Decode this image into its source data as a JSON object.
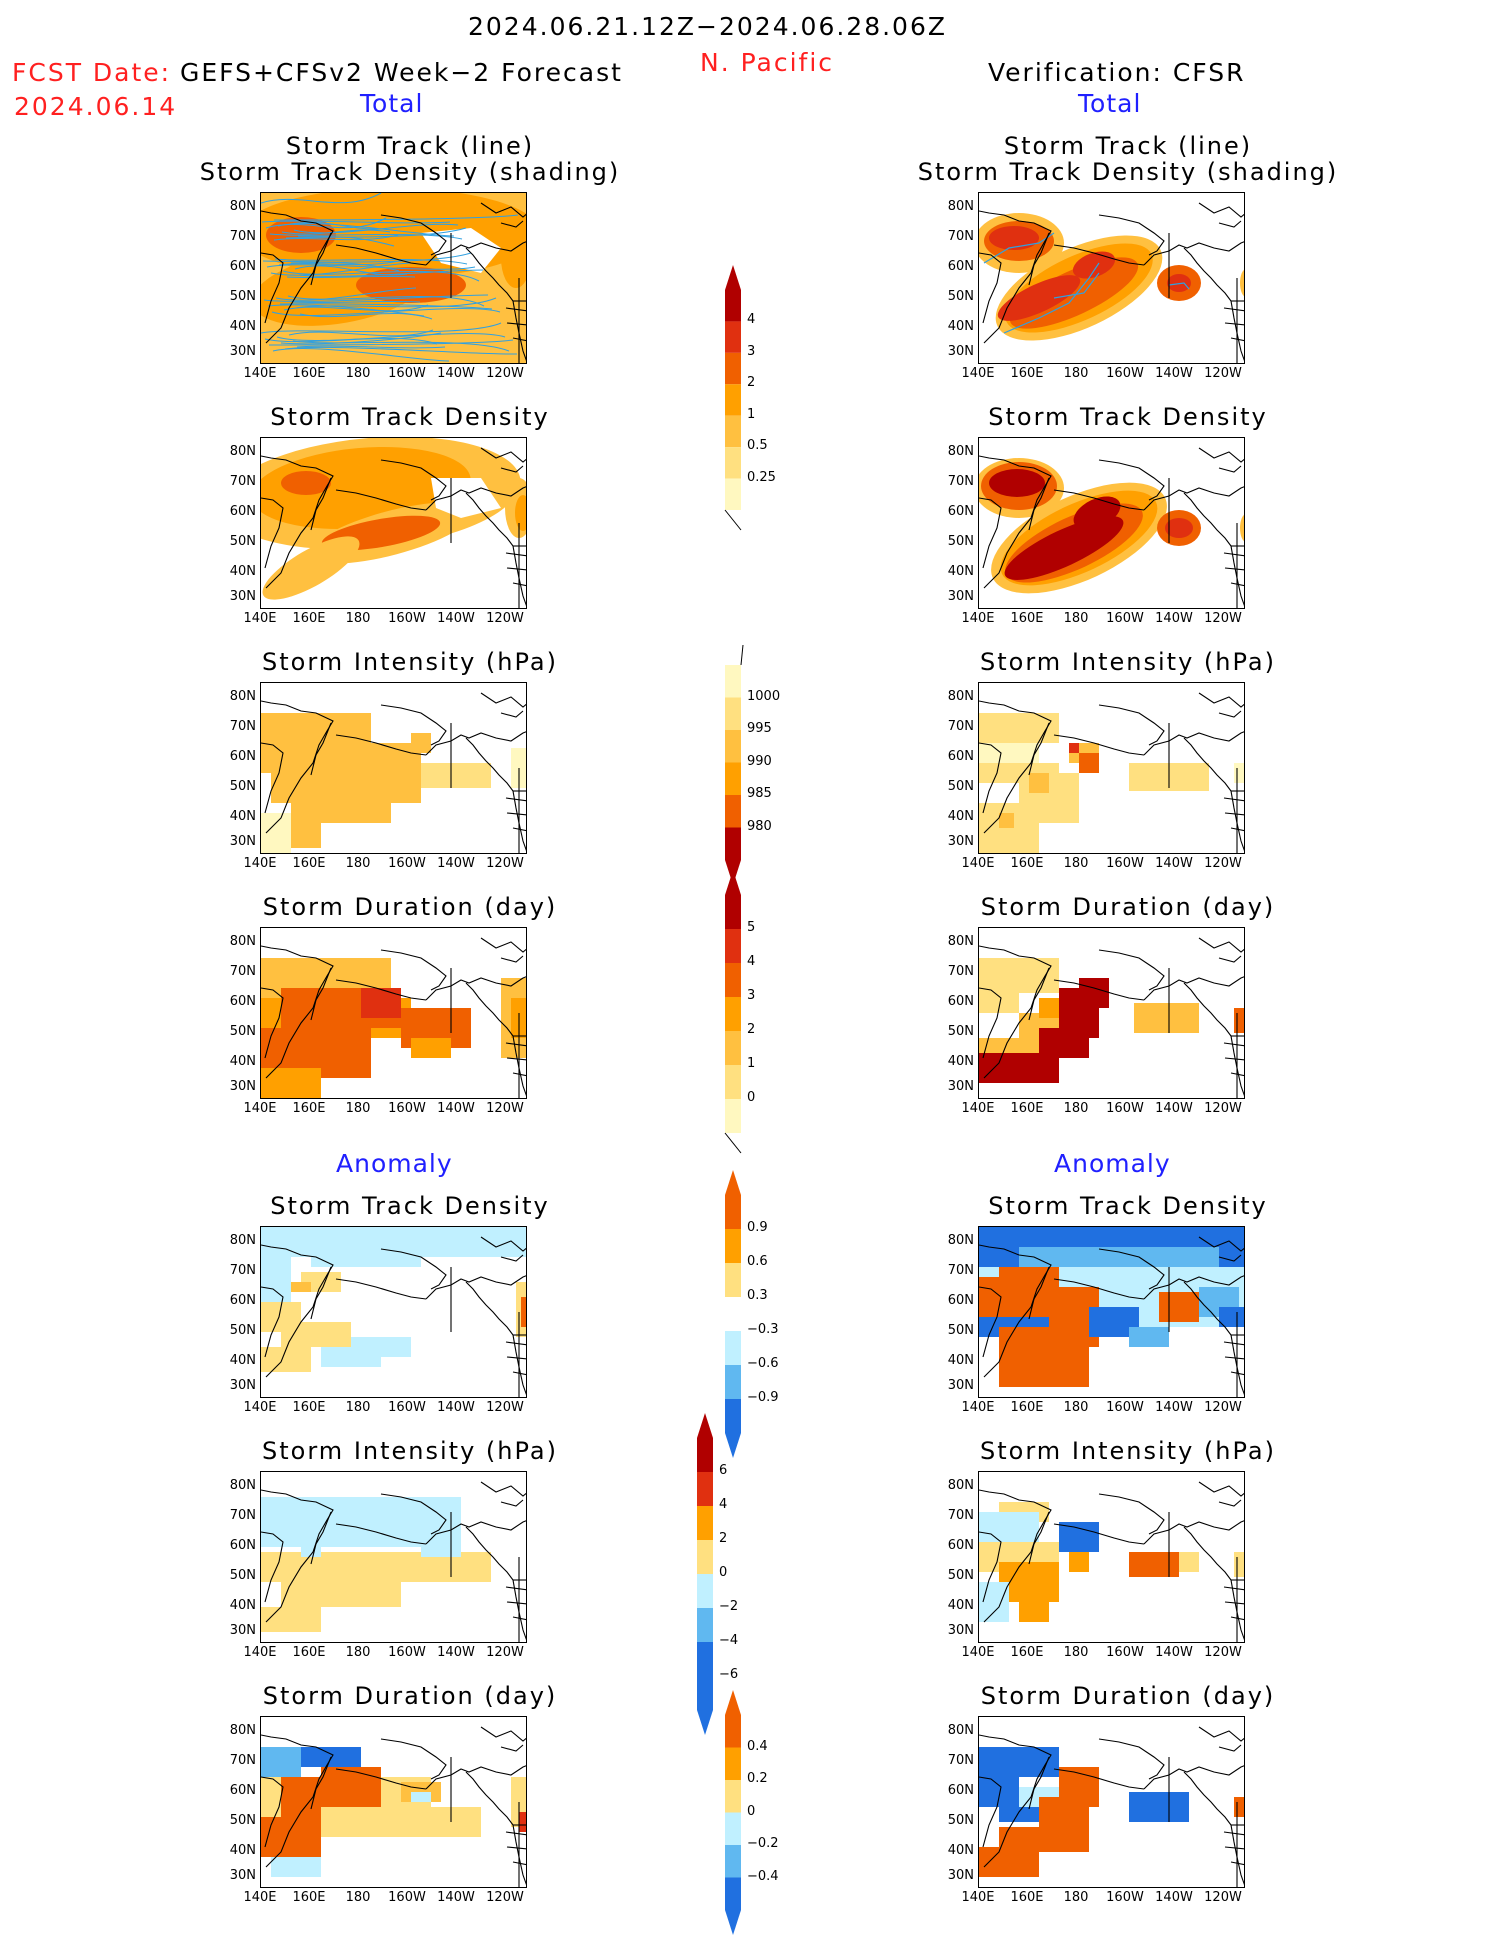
{
  "header": {
    "period": "2024.06.21.12Z−2024.06.28.06Z",
    "region": "N. Pacific",
    "fcst_label": "FCST Date:",
    "fcst_model": "GEFS+CFSv2 Week−2 Forecast",
    "fcst_date": "2024.06.14",
    "verification": "Verification: CFSR"
  },
  "section_labels": {
    "total": "Total",
    "anomaly": "Anomaly"
  },
  "panel_titles": {
    "track_line": "Storm Track (line)",
    "track_shading": "Storm Track Density (shading)",
    "density": "Storm Track Density",
    "intensity": "Storm Intensity (hPa)",
    "duration": "Storm Duration (day)"
  },
  "axes": {
    "lat_labels": [
      "80N",
      "70N",
      "60N",
      "50N",
      "40N",
      "30N"
    ],
    "lon_labels": [
      "140E",
      "160E",
      "180",
      "160W",
      "140W",
      "120W"
    ]
  },
  "colorbars": {
    "density_total": [
      "4",
      "3",
      "2",
      "1",
      "0.5",
      "0.25"
    ],
    "intensity_total": [
      "1000",
      "995",
      "990",
      "985",
      "980"
    ],
    "duration_total": [
      "5",
      "4",
      "3",
      "2",
      "1",
      "0"
    ],
    "density_anom": [
      "0.9",
      "0.6",
      "0.3",
      "−0.3",
      "−0.6",
      "−0.9"
    ],
    "intensity_anom": [
      "6",
      "4",
      "2",
      "0",
      "−2",
      "−4",
      "−6"
    ],
    "duration_anom": [
      "0.4",
      "0.2",
      "0",
      "−0.2",
      "−0.4"
    ]
  },
  "colors": {
    "yellow_light": "#fff8c0",
    "yellow": "#ffe080",
    "orange_light": "#ffc040",
    "orange": "#ffa000",
    "orange_dark": "#f06000",
    "red": "#e03010",
    "red_dark": "#b00000",
    "light_blue": "#c0f0ff",
    "mid_blue": "#60b8f0",
    "blue": "#2070e0",
    "track_line": "#30a0e0",
    "map_line": "#000000"
  }
}
